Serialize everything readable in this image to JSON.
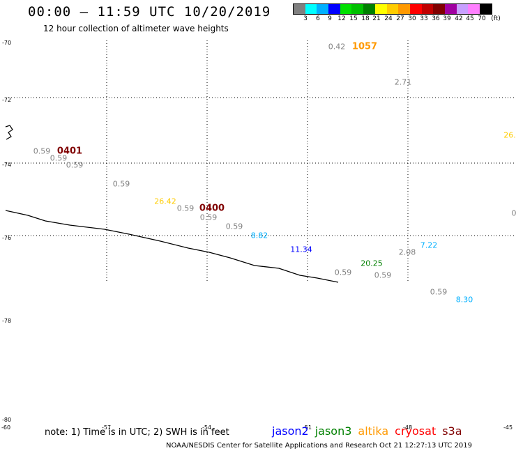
{
  "header": {
    "title": "00:00 – 11:59 UTC 10/20/2019",
    "subtitle": "12 hour collection of altimeter wave heights"
  },
  "legend": {
    "colors": [
      "#808080",
      "#00ffff",
      "#00b0ff",
      "#0000ff",
      "#00e000",
      "#00c000",
      "#008000",
      "#ffff00",
      "#ffcc00",
      "#ff9900",
      "#ff0000",
      "#c00000",
      "#800000",
      "#a000a0",
      "#c8a0ff",
      "#ff80ff",
      "#000000"
    ],
    "ticks": [
      "3",
      "6",
      "9",
      "12",
      "15",
      "18",
      "21",
      "24",
      "27",
      "30",
      "33",
      "36",
      "39",
      "42",
      "45",
      "70",
      "(ft)"
    ]
  },
  "map": {
    "lat_labels": [
      "-70",
      "-72",
      "-74",
      "-76",
      "-78",
      "-80"
    ],
    "lon_labels": [
      "-60",
      "-57",
      "-54",
      "-51",
      "-48",
      "-45"
    ],
    "observations": [
      {
        "text": "0.42",
        "color": "#808080"
      },
      {
        "text": "1057",
        "color": "#ff9900"
      },
      {
        "text": "2.71",
        "color": "#808080"
      },
      {
        "text": "26.",
        "color": "#ffcc00"
      },
      {
        "text": "0.59",
        "color": "#808080"
      },
      {
        "text": "0401",
        "color": "#800000"
      },
      {
        "text": "0.59",
        "color": "#808080"
      },
      {
        "text": "0.59",
        "color": "#808080"
      },
      {
        "text": "0.59",
        "color": "#808080"
      },
      {
        "text": "26.42",
        "color": "#ffcc00"
      },
      {
        "text": "0.59",
        "color": "#808080"
      },
      {
        "text": "0400",
        "color": "#800000"
      },
      {
        "text": "0.59",
        "color": "#808080"
      },
      {
        "text": "0.59",
        "color": "#808080"
      },
      {
        "text": "0",
        "color": "#808080"
      },
      {
        "text": "8.82",
        "color": "#00b0ff"
      },
      {
        "text": "11.34",
        "color": "#0000ff"
      },
      {
        "text": "7.22",
        "color": "#00b0ff"
      },
      {
        "text": "2.08",
        "color": "#808080"
      },
      {
        "text": "20.25",
        "color": "#008000"
      },
      {
        "text": "0.59",
        "color": "#808080"
      },
      {
        "text": "0.59",
        "color": "#808080"
      },
      {
        "text": "0.59",
        "color": "#808080"
      },
      {
        "text": "8.30",
        "color": "#00b0ff"
      }
    ]
  },
  "footer": {
    "note": "note: 1) Time is in UTC; 2) SWH is in feet",
    "satellites": [
      {
        "name": "jason2",
        "color": "#0000ff"
      },
      {
        "name": "jason3",
        "color": "#008000"
      },
      {
        "name": "altika",
        "color": "#ff9900"
      },
      {
        "name": "cryosat",
        "color": "#ff0000"
      },
      {
        "name": "s3a",
        "color": "#800000"
      }
    ],
    "credit": "NOAA/NESDIS Center for Satellite Applications and Research    Oct 21 12:27:13 UTC 2019"
  }
}
